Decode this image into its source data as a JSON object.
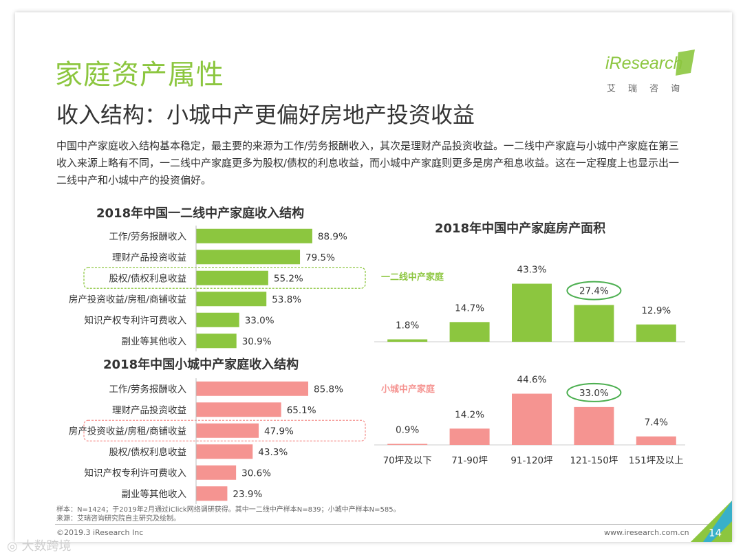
{
  "page": {
    "title": "家庭资产属性",
    "subtitle": "收入结构：小城中产更偏好房地产投资收益",
    "intro": "中国中产家庭收入结构基本稳定，最主要的来源为工作/劳务报酬收入，其次是理财产品投资收益。一二线中产家庭与小城中产家庭在第三收入来源上略有不同，一二线中产家庭更多为股权/债权的利息收益，而小城中产家庭则更多是房产租息收益。这在一定程度上也显示出一二线中产和小城中产的投资偏好。",
    "logo_text": "iResearch",
    "logo_cn": "艾瑞咨询",
    "note_sample": "样本：N=1424；于2019年2月通过iClick网络调研获得。其中一二线中产样本N=839；小城中产样本N=585。",
    "note_source": "来源：艾瑞咨询研究院自主研究及绘制。",
    "footer_left": "©2019.3 iResearch Inc",
    "footer_right": "www.iresearch.com.cn",
    "page_number": "14",
    "watermark": "大数跨境"
  },
  "colors": {
    "green": "#8cc63f",
    "pink": "#f59491",
    "text": "#333333"
  },
  "chart_data": [
    {
      "type": "bar",
      "orientation": "horizontal",
      "title": "2018年中国一二线中产家庭收入结构",
      "categories": [
        "工作/劳务报酬收入",
        "理财产品投资收益",
        "股权/债权利息收益",
        "房产投资收益/房租/商铺收益",
        "知识产权专利许可费收入",
        "副业等其他收入"
      ],
      "values": [
        88.9,
        79.5,
        55.2,
        53.8,
        33.0,
        30.9
      ],
      "labels": [
        "88.9%",
        "79.5%",
        "55.2%",
        "53.8%",
        "33.0%",
        "30.9%"
      ],
      "highlight_index": 2,
      "color": "#8cc63f"
    },
    {
      "type": "bar",
      "orientation": "horizontal",
      "title": "2018年中国小城中产家庭收入结构",
      "categories": [
        "工作/劳务报酬收入",
        "理财产品投资收益",
        "房产投资收益/房租/商铺收益",
        "股权/债权利息收益",
        "知识产权专利许可费收入",
        "副业等其他收入"
      ],
      "values": [
        85.8,
        65.1,
        47.9,
        43.3,
        30.6,
        23.9
      ],
      "labels": [
        "85.8%",
        "65.1%",
        "47.9%",
        "43.3%",
        "30.6%",
        "23.9%"
      ],
      "highlight_index": 2,
      "color": "#f59491"
    },
    {
      "type": "bar",
      "title": "2018年中国中产家庭房产面积",
      "categories": [
        "70坪及以下",
        "71-90坪",
        "91-120坪",
        "121-150坪",
        "151坪及以上"
      ],
      "series": [
        {
          "name": "一二线中产家庭",
          "values": [
            1.8,
            14.7,
            43.3,
            27.4,
            12.9
          ],
          "labels": [
            "1.8%",
            "14.7%",
            "43.3%",
            "27.4%",
            "12.9%"
          ],
          "color": "#8cc63f",
          "highlight_index": 3
        },
        {
          "name": "小城中产家庭",
          "values": [
            0.9,
            14.2,
            44.6,
            33.0,
            7.4
          ],
          "labels": [
            "0.9%",
            "14.2%",
            "44.6%",
            "33.0%",
            "7.4%"
          ],
          "color": "#f59491",
          "highlight_index": 3
        }
      ]
    }
  ]
}
